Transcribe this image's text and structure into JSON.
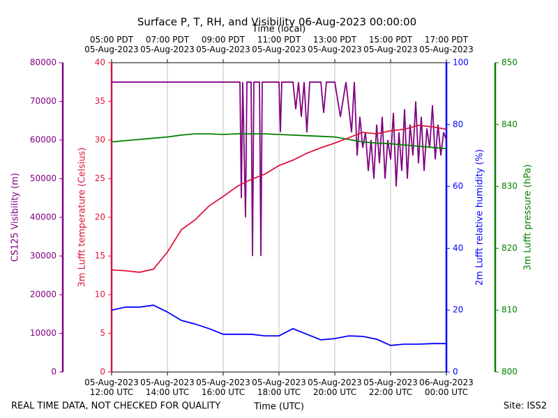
{
  "chart_data": {
    "type": "line",
    "title": "Surface P, T, RH, and Visibility 06-Aug-2023 00:00:00",
    "xlabel": "Time (UTC)",
    "x2label": "Time (local)",
    "note": "REAL TIME DATA, NOT CHECKED FOR QUALITY",
    "site": "Site: ISS2",
    "xlim": [
      12,
      24
    ],
    "xticks": [
      {
        "value": 12,
        "label": "05-Aug-2023\n12:00 UTC"
      },
      {
        "value": 14,
        "label": "05-Aug-2023\n14:00 UTC"
      },
      {
        "value": 16,
        "label": "05-Aug-2023\n16:00 UTC"
      },
      {
        "value": 18,
        "label": "05-Aug-2023\n18:00 UTC"
      },
      {
        "value": 20,
        "label": "05-Aug-2023\n20:00 UTC"
      },
      {
        "value": 22,
        "label": "05-Aug-2023\n22:00 UTC"
      },
      {
        "value": 24,
        "label": "06-Aug-2023\n00:00 UTC"
      }
    ],
    "x2ticks": [
      {
        "value": 12,
        "label": "05:00 PDT\n05-Aug-2023"
      },
      {
        "value": 14,
        "label": "07:00 PDT\n05-Aug-2023"
      },
      {
        "value": 16,
        "label": "09:00 PDT\n05-Aug-2023"
      },
      {
        "value": 18,
        "label": "11:00 PDT\n05-Aug-2023"
      },
      {
        "value": 20,
        "label": "13:00 PDT\n05-Aug-2023"
      },
      {
        "value": 22,
        "label": "15:00 PDT\n05-Aug-2023"
      },
      {
        "value": 24,
        "label": "17:00 PDT\n05-Aug-2023"
      }
    ],
    "grid": true,
    "ylabel": "3m Lufft temperature (Celsius)",
    "ylim": [
      0,
      40
    ],
    "yticks": [
      0,
      5,
      10,
      15,
      20,
      25,
      30,
      35,
      40
    ],
    "y2label": "2m Lufft relative humidity (%)",
    "y2lim": [
      0,
      100
    ],
    "y2ticks": [
      0,
      20,
      40,
      60,
      80,
      100
    ],
    "y3label": "CS125 Visibility (m)",
    "y3lim": [
      0,
      80000
    ],
    "y3ticks": [
      0,
      10000,
      20000,
      30000,
      40000,
      50000,
      60000,
      70000,
      80000
    ],
    "y4label": "3m Lufft pressure (hPa)",
    "y4lim": [
      800,
      850
    ],
    "y4ticks": [
      800,
      810,
      820,
      830,
      840,
      850
    ],
    "axis_colors": {
      "y": "#dc143c",
      "y2": "#0000ff",
      "y3": "#800080",
      "y4": "#008000"
    },
    "x": [
      12,
      12.5,
      13,
      13.5,
      14,
      14.5,
      15,
      15.5,
      16,
      16.5,
      17,
      17.5,
      18,
      18.5,
      19,
      19.5,
      20,
      20.5,
      21,
      21.5,
      22,
      22.5,
      23,
      23.5,
      24
    ],
    "series": [
      {
        "color": "#800080",
        "axis": "y3",
        "x": [
          12,
          16.6,
          16.65,
          16.7,
          16.8,
          16.85,
          17.0,
          17.05,
          17.1,
          17.3,
          17.35,
          17.4,
          18.0,
          18.05,
          18.1,
          18.5,
          18.6,
          18.7,
          18.8,
          18.9,
          19.0,
          19.1,
          19.5,
          19.6,
          19.7,
          20.0,
          20.2,
          20.4,
          20.6,
          20.7,
          20.8,
          20.9,
          21.0,
          21.1,
          21.2,
          21.3,
          21.4,
          21.5,
          21.6,
          21.7,
          21.8,
          21.9,
          22.0,
          22.1,
          22.2,
          22.3,
          22.4,
          22.5,
          22.6,
          22.7,
          22.8,
          22.9,
          23.0,
          23.1,
          23.2,
          23.3,
          23.4,
          23.5,
          23.6,
          23.7,
          23.8,
          23.9,
          24.0
        ],
        "values": [
          75000,
          75000,
          45000,
          75000,
          40000,
          75000,
          75000,
          30000,
          75000,
          75000,
          30000,
          75000,
          75000,
          62000,
          75000,
          75000,
          68000,
          75000,
          66000,
          75000,
          62000,
          75000,
          75000,
          67000,
          75000,
          75000,
          66000,
          75000,
          62000,
          75000,
          56000,
          66000,
          58000,
          62000,
          52000,
          60000,
          50000,
          64000,
          54000,
          66000,
          50000,
          60000,
          55000,
          67000,
          48000,
          62000,
          52000,
          68000,
          50000,
          64000,
          56000,
          70000,
          54000,
          66000,
          52000,
          63000,
          58000,
          69000,
          55000,
          64000,
          56000,
          62000,
          60000
        ]
      },
      {
        "color": "#008000",
        "axis": "y4",
        "values": [
          837.2,
          837.4,
          837.6,
          837.8,
          838,
          838.3,
          838.5,
          838.5,
          838.4,
          838.5,
          838.5,
          838.5,
          838.4,
          838.3,
          838.2,
          838.1,
          838,
          837.6,
          837.2,
          837,
          836.9,
          836.7,
          836.5,
          836.3,
          836.1
        ]
      },
      {
        "color": "#dc143c",
        "axis": "y",
        "values": [
          13.2,
          13.1,
          12.9,
          13.3,
          15.5,
          18.4,
          19.7,
          21.5,
          22.7,
          24,
          24.9,
          25.6,
          26.7,
          27.4,
          28.3,
          29,
          29.6,
          30.3,
          31,
          30.8,
          31.2,
          31.4,
          31.9,
          31.7,
          31.4
        ]
      },
      {
        "color": "#0000ff",
        "axis": "y2",
        "values": [
          20,
          21,
          21,
          21.6,
          19.4,
          16.7,
          15.5,
          14,
          12.2,
          12.2,
          12.2,
          11.7,
          11.7,
          14,
          12.2,
          10.4,
          10.8,
          11.7,
          11.5,
          10.6,
          8.6,
          9,
          9,
          9.2,
          9.2
        ]
      }
    ]
  }
}
